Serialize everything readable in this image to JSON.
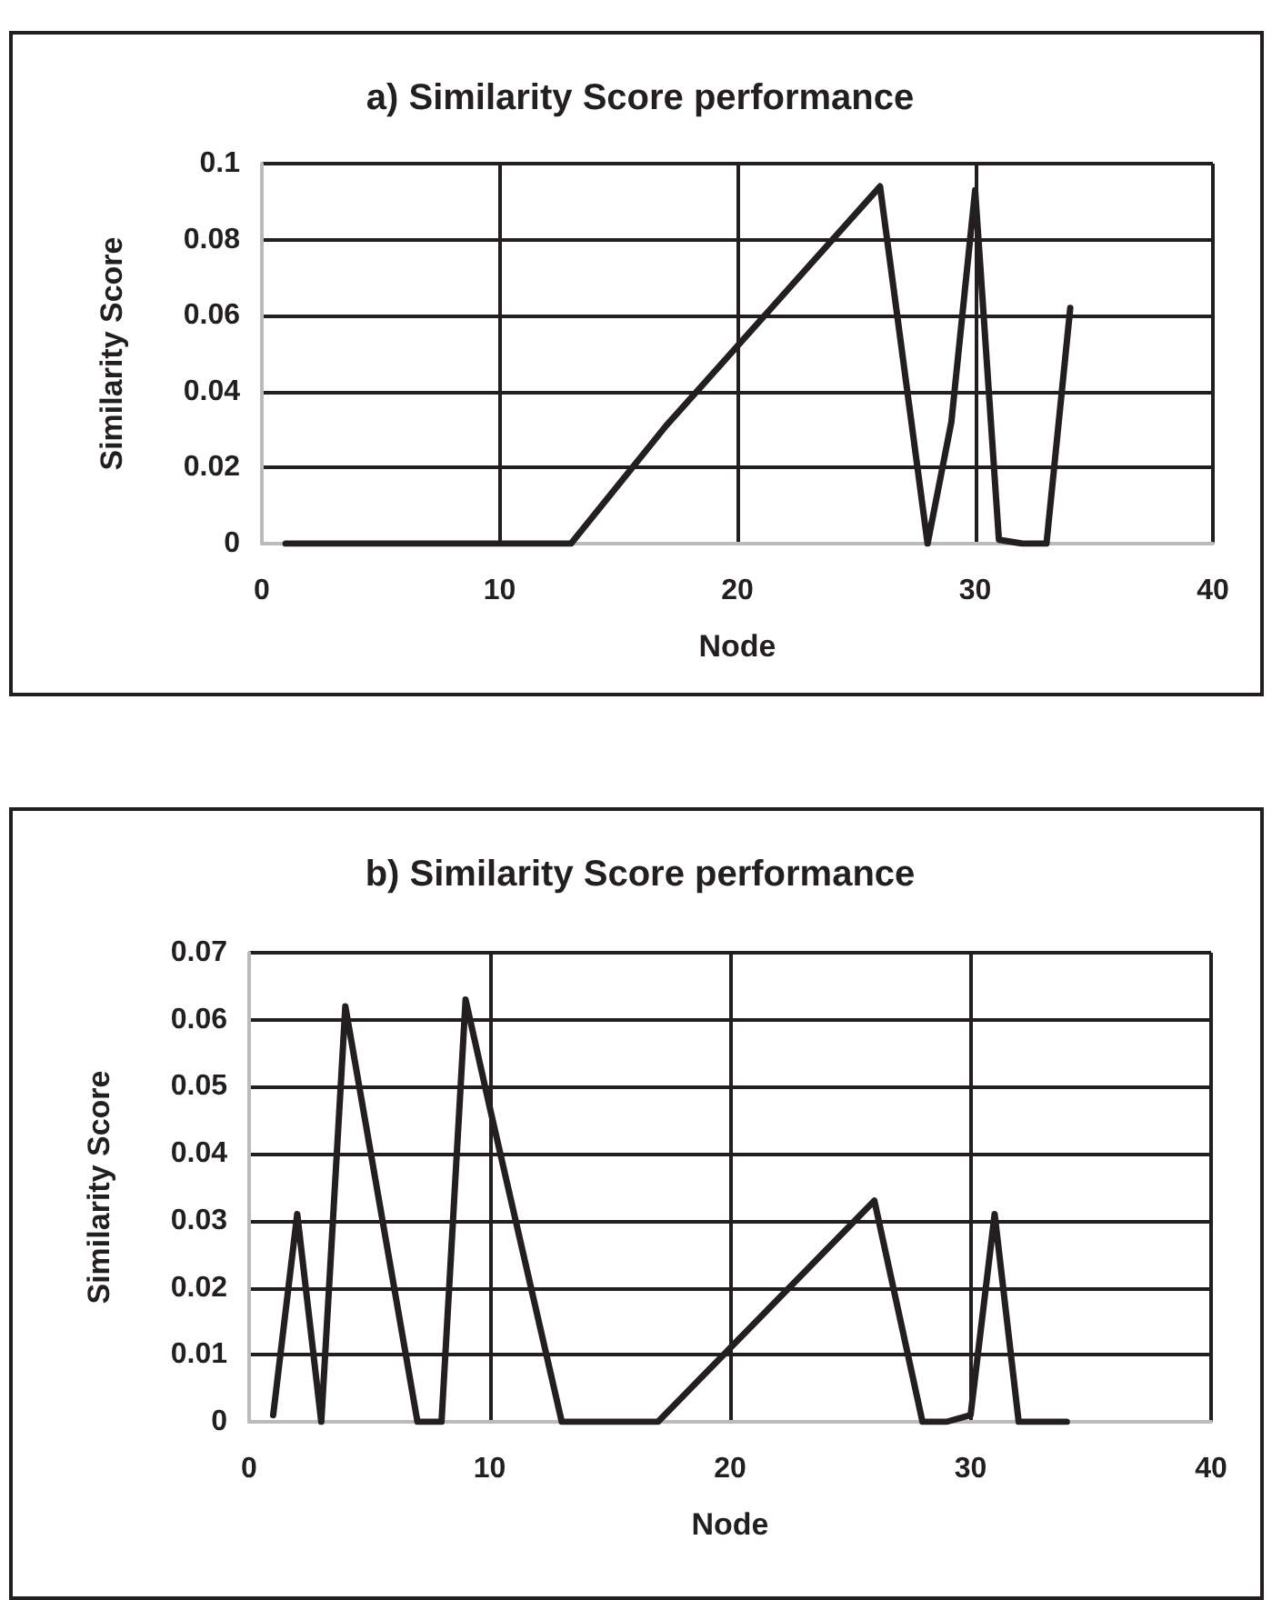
{
  "chart_data": [
    {
      "type": "line",
      "title": "a) Similarity Score performance",
      "xlabel": "Node",
      "ylabel": "Similarity Score",
      "x": [
        1,
        13,
        17,
        26,
        28,
        29,
        30,
        31,
        32,
        33,
        34
      ],
      "series": [
        {
          "color": "#231f20",
          "values": [
            0,
            0,
            0.031,
            0.094,
            0,
            0.032,
            0.093,
            0.001,
            0,
            0,
            0.062
          ]
        }
      ],
      "xlim": [
        0,
        40
      ],
      "xticks": [
        0,
        10,
        20,
        30,
        40
      ],
      "ylim": [
        0,
        0.1
      ],
      "yticks": [
        0,
        0.02,
        0.04,
        0.06,
        0.08,
        0.1
      ],
      "grid": true,
      "marker": "none",
      "line_style": "solid"
    },
    {
      "type": "line",
      "title": "b) Similarity Score performance",
      "xlabel": "Node",
      "ylabel": "Similarity Score",
      "x": [
        1,
        2,
        3,
        4,
        7,
        8,
        9,
        10,
        13,
        17,
        26,
        28,
        29,
        30,
        31,
        32,
        34
      ],
      "series": [
        {
          "color": "#231f20",
          "values": [
            0.001,
            0.031,
            0,
            0.062,
            0,
            0,
            0.063,
            0.047,
            0,
            0,
            0.033,
            0,
            0,
            0.001,
            0.031,
            0,
            0
          ]
        }
      ],
      "xlim": [
        0,
        40
      ],
      "xticks": [
        0,
        10,
        20,
        30,
        40
      ],
      "ylim": [
        0,
        0.07
      ],
      "yticks": [
        0,
        0.01,
        0.02,
        0.03,
        0.04,
        0.05,
        0.06,
        0.07
      ],
      "grid": true,
      "marker": "none",
      "line_style": "solid"
    }
  ]
}
